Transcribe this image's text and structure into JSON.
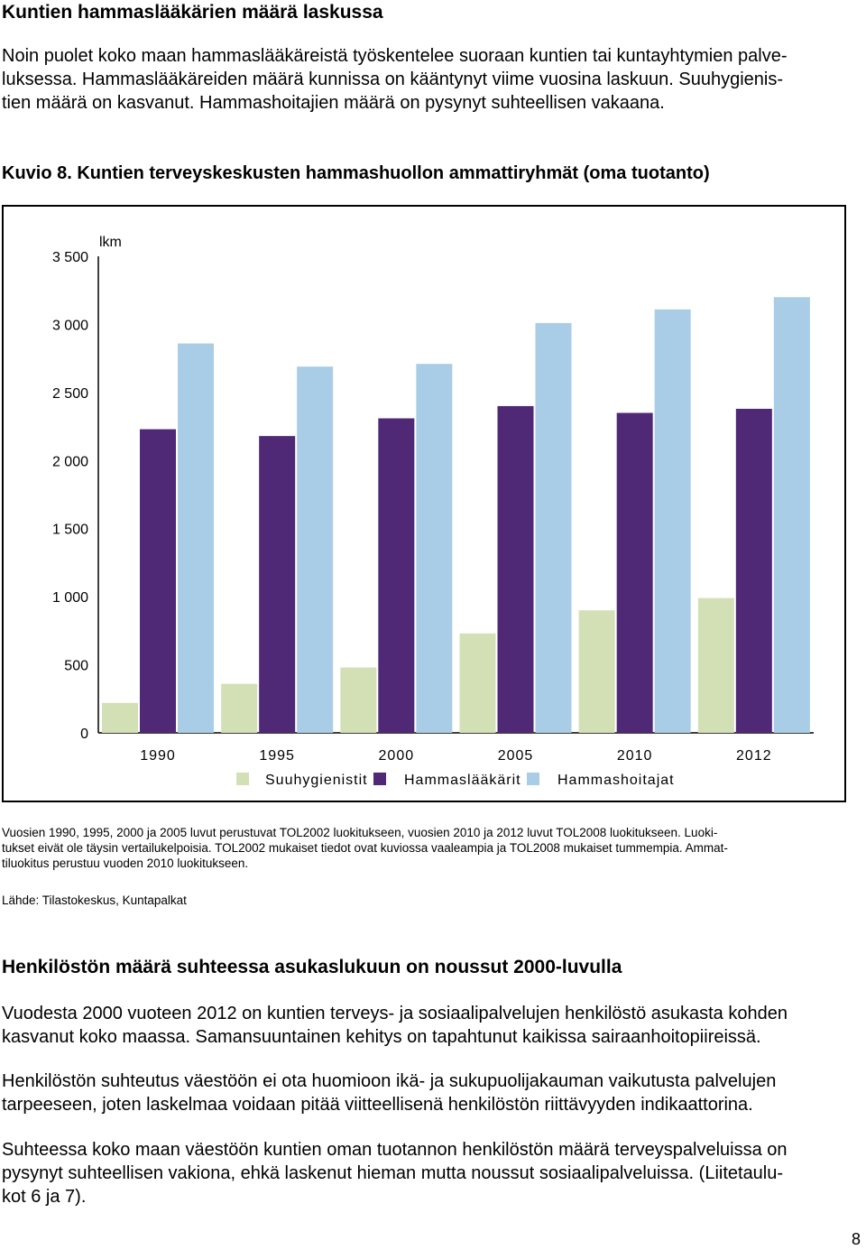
{
  "section1": {
    "heading": "Kuntien hammaslääkärien määrä laskussa",
    "para_lines": [
      "Noin puolet koko maan hammaslääkäreistä työskentelee suoraan kuntien tai kuntayhtymien palve-",
      "luksessa. Hammaslääkäreiden määrä kunnissa on kääntynyt viime vuosina laskuun. Suuhygienis-",
      "tien määrä on kasvanut. Hammashoitajien määrä on pysynyt suhteellisen vakaana."
    ]
  },
  "figure": {
    "label": "Kuvio 8.",
    "title": "Kuntien terveyskeskusten hammashuollon ammattiryhmät (oma tuotanto)"
  },
  "chart_data": {
    "type": "bar",
    "ylabel": "lkm",
    "ylim": [
      0,
      3500
    ],
    "yticks": [
      "0",
      "500",
      "1 000",
      "1 500",
      "2 000",
      "2 500",
      "3 000",
      "3 500"
    ],
    "categories": [
      "1990",
      "1995",
      "2000",
      "2005",
      "2010",
      "2012"
    ],
    "series": [
      {
        "name": "Suuhygienistit",
        "color": "#d3e0b5",
        "values": [
          220,
          360,
          480,
          730,
          900,
          990
        ]
      },
      {
        "name": "Hammaslääkärit",
        "color": "#4f2876",
        "values": [
          2230,
          2180,
          2310,
          2400,
          2350,
          2380
        ]
      },
      {
        "name": "Hammashoitajat",
        "color": "#a9cde6",
        "values": [
          2860,
          2690,
          2710,
          3010,
          3110,
          3200
        ]
      }
    ],
    "grid": false,
    "legend_position": "bottom"
  },
  "notes": {
    "lines": [
      "Vuosien 1990, 1995, 2000 ja 2005 luvut perustuvat TOL2002 luokitukseen, vuosien 2010 ja 2012 luvut TOL2008 luokitukseen. Luoki-",
      "tukset eivät ole täysin vertailukelpoisia. TOL2002 mukaiset tiedot ovat kuviossa vaaleampia ja TOL2008 mukaiset tummempia.  Ammat-",
      "tiluokitus perustuu vuoden 2010 luokitukseen."
    ],
    "source": "Lähde: Tilastokeskus, Kuntapalkat"
  },
  "section2": {
    "heading": "Henkilöstön määrä suhteessa asukaslukuun on noussut 2000-luvulla",
    "paragraphs": [
      [
        "Vuodesta 2000 vuoteen 2012 on kuntien terveys- ja sosiaalipalvelujen henkilöstö asukasta kohden",
        "kasvanut koko maassa. Samansuuntainen kehitys on tapahtunut kaikissa sairaanhoitopiireissä."
      ],
      [
        "Henkilöstön suhteutus väestöön ei ota huomioon ikä- ja sukupuolijakauman vaikutusta palvelujen",
        "tarpeeseen, joten laskelmaa voidaan pitää viitteellisenä henkilöstön riittävyyden indikaattorina."
      ],
      [
        "Suhteessa koko maan väestöön kuntien oman tuotannon henkilöstön määrä terveyspalveluissa on",
        "pysynyt suhteellisen vakiona, ehkä laskenut hieman mutta noussut sosiaalipalveluissa. (Liitetaulu-",
        "kot 6 ja 7)."
      ]
    ]
  },
  "page_number": "8"
}
